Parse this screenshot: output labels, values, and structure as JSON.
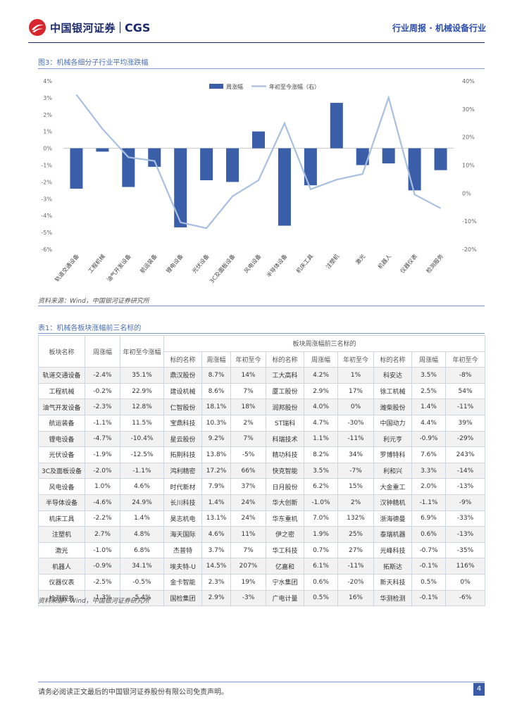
{
  "header": {
    "logo_cn": "中国银河证券",
    "logo_en": "CGS",
    "report_type": "行业周报",
    "separator": "·",
    "industry": "机械设备行业"
  },
  "figure": {
    "title": "图3：机械各细分子行业平均涨跌幅",
    "source": "资料来源：Wind，中国银河证券研究所"
  },
  "chart_data": {
    "type": "bar",
    "categories": [
      "轨道交通设备",
      "工程机械",
      "油气开发设备",
      "航运装备",
      "锂电设备",
      "光伏设备",
      "3C及面板设备",
      "风电设备",
      "半导体设备",
      "机床工具",
      "注塑机",
      "激光",
      "机器人",
      "仪器仪表",
      "检测服务"
    ],
    "series": [
      {
        "name": "周涨幅",
        "axis": "left",
        "kind": "bar",
        "color": "#3b5ea9",
        "values": [
          -2.4,
          -0.2,
          -2.3,
          -1.1,
          -4.7,
          -1.9,
          -2.0,
          1.0,
          -4.6,
          -2.2,
          2.7,
          -1.0,
          -0.9,
          -2.5,
          -1.3
        ]
      },
      {
        "name": "年初至今涨幅（右）",
        "axis": "right",
        "kind": "line",
        "color": "#a9bfe0",
        "values": [
          35.1,
          22.9,
          12.8,
          11.5,
          -10.4,
          -12.5,
          -1.1,
          4.6,
          24.9,
          1.4,
          4.8,
          6.8,
          34.1,
          -0.5,
          -5.4
        ]
      }
    ],
    "left_axis": {
      "min": -6,
      "max": 4,
      "step": 1,
      "ticks": [
        "-6%",
        "-5%",
        "-4%",
        "-3%",
        "-2%",
        "-1%",
        "0%",
        "1%",
        "2%",
        "3%",
        "4%"
      ]
    },
    "right_axis": {
      "min": -20,
      "max": 40,
      "step": 10,
      "ticks": [
        "-20%",
        "-10%",
        "0%",
        "10%",
        "20%",
        "30%",
        "40%"
      ]
    },
    "legend": [
      "周涨幅",
      "年初至今涨幅（右）"
    ]
  },
  "table": {
    "title": "表1：机械各板块涨幅前三名标的",
    "group_header": "板块周涨幅前三名标的",
    "headers": [
      "板块名称",
      "周涨幅",
      "年初至今涨幅",
      "标的名称",
      "周涨幅",
      "年初至今",
      "标的名称",
      "周涨幅",
      "年初至今",
      "标的名称",
      "周涨幅",
      "年初至今"
    ],
    "rows": [
      [
        "轨道交通设备",
        "-2.4%",
        "35.1%",
        "鼎汉股份",
        "8.7%",
        "14%",
        "工大高科",
        "4.2%",
        "1%",
        "科安达",
        "3.5%",
        "-8%"
      ],
      [
        "工程机械",
        "-0.2%",
        "22.9%",
        "建设机械",
        "8.6%",
        "7%",
        "厦工股份",
        "2.9%",
        "17%",
        "徐工机械",
        "2.5%",
        "54%"
      ],
      [
        "油气开发设备",
        "-2.3%",
        "12.8%",
        "仁智股份",
        "18.1%",
        "18%",
        "润邦股份",
        "4.0%",
        "0%",
        "潍柴股份",
        "1.4%",
        "-11%"
      ],
      [
        "航运装备",
        "-1.1%",
        "11.5%",
        "宝鼎科技",
        "10.3%",
        "2%",
        "ST瑞科",
        "4.7%",
        "-30%",
        "中国动力",
        "4.4%",
        "39%"
      ],
      [
        "锂电设备",
        "-4.7%",
        "-10.4%",
        "星云股份",
        "9.2%",
        "7%",
        "科瑞技术",
        "1.1%",
        "-11%",
        "利元亨",
        "-0.9%",
        "-29%"
      ],
      [
        "光伏设备",
        "-1.9%",
        "-12.5%",
        "拓荆科技",
        "13.8%",
        "-5%",
        "精功科技",
        "8.2%",
        "34%",
        "罗博特科",
        "7.6%",
        "243%"
      ],
      [
        "3C及面板设备",
        "-2.0%",
        "-1.1%",
        "鸿利精密",
        "17.2%",
        "66%",
        "快克智能",
        "3.5%",
        "-7%",
        "利和兴",
        "3.3%",
        "-14%"
      ],
      [
        "风电设备",
        "1.0%",
        "4.6%",
        "时代新材",
        "7.9%",
        "37%",
        "日月股份",
        "6.2%",
        "15%",
        "大金重工",
        "2.0%",
        "-13%"
      ],
      [
        "半导体设备",
        "-4.6%",
        "24.9%",
        "长川科技",
        "1.4%",
        "24%",
        "华大创新",
        "-1.0%",
        "2%",
        "汉钟精机",
        "-1.1%",
        "-9%"
      ],
      [
        "机床工具",
        "-2.2%",
        "1.4%",
        "昊志机电",
        "13.1%",
        "24%",
        "华东重机",
        "7.0%",
        "132%",
        "浙海德曼",
        "6.9%",
        "-33%"
      ],
      [
        "注塑机",
        "2.7%",
        "4.8%",
        "海天国际",
        "4.6%",
        "11%",
        "伊之密",
        "1.9%",
        "25%",
        "泰瑞机器",
        "0.6%",
        "-13%"
      ],
      [
        "激光",
        "-1.0%",
        "6.8%",
        "杰普特",
        "3.7%",
        "7%",
        "华工科技",
        "0.7%",
        "27%",
        "光峰科技",
        "-0.7%",
        "-35%"
      ],
      [
        "机器人",
        "-0.9%",
        "34.1%",
        "埃夫特-U",
        "14.5%",
        "207%",
        "亿嘉和",
        "6.1%",
        "-11%",
        "拓斯达",
        "-0.1%",
        "116%"
      ],
      [
        "仪器仪表",
        "-2.5%",
        "-0.5%",
        "金卡智能",
        "2.3%",
        "19%",
        "宁水集团",
        "0.6%",
        "-20%",
        "新天科技",
        "0.5%",
        "0%"
      ],
      [
        "检测服务",
        "-1.3%",
        "-5.4%",
        "国检集团",
        "2.9%",
        "-3%",
        "广电计量",
        "0.5%",
        "16%",
        "华测检测",
        "-0.1%",
        "-6%"
      ]
    ],
    "source": "资料来源：Wind，中国银河证券研究所"
  },
  "footer": {
    "disclaimer": "请务必阅读正文最后的中国银河证券股份有限公司免责声明。",
    "page": "4"
  }
}
